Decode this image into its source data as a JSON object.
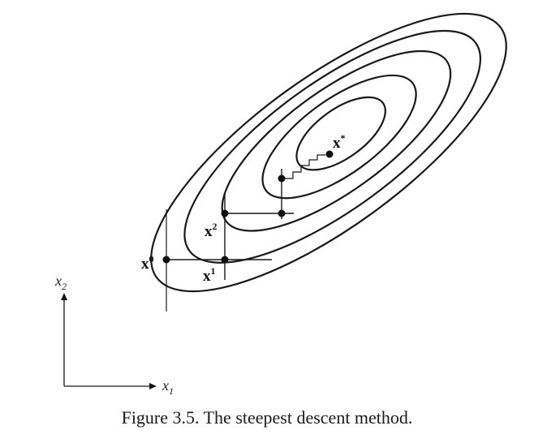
{
  "figure": {
    "caption": "Figure 3.5. The steepest descent method.",
    "points": {
      "x0": {
        "base": "x",
        "sup": "0"
      },
      "x1": {
        "base": "x",
        "sup": "1"
      },
      "x2": {
        "base": "x",
        "sup": "2"
      },
      "xstar": {
        "base": "x",
        "sup": "*"
      }
    },
    "axes": {
      "x1": {
        "base": "x",
        "sub": "1"
      },
      "x2": {
        "base": "x",
        "sub": "2"
      }
    },
    "contour_count": 5
  }
}
